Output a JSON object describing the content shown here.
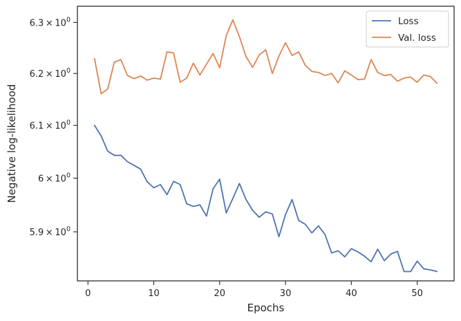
{
  "chart_data": {
    "type": "line",
    "title": "",
    "xlabel": "Epochs",
    "ylabel": "Negative log-likelihood",
    "y_scale": "log",
    "xlim": [
      -1.6,
      55.6
    ],
    "ylim": [
      5.81,
      6.332
    ],
    "grid": false,
    "legend_position": "top-right",
    "x_ticks": [
      0,
      10,
      20,
      30,
      40,
      50
    ],
    "x_tick_labels": [
      "0",
      "10",
      "20",
      "30",
      "40",
      "50"
    ],
    "y_ticks": [
      5.9,
      6.0,
      6.1,
      6.2,
      6.3
    ],
    "y_tick_labels": [
      {
        "mantissa": "5.9",
        "times": "×",
        "base": "10",
        "exp": "0"
      },
      {
        "mantissa": "6",
        "times": "×",
        "base": "10",
        "exp": "0"
      },
      {
        "mantissa": "6.1",
        "times": "×",
        "base": "10",
        "exp": "0"
      },
      {
        "mantissa": "6.2",
        "times": "×",
        "base": "10",
        "exp": "0"
      },
      {
        "mantissa": "6.3",
        "times": "×",
        "base": "10",
        "exp": "0"
      }
    ],
    "x": [
      1,
      2,
      3,
      4,
      5,
      6,
      7,
      8,
      9,
      10,
      11,
      12,
      13,
      14,
      15,
      16,
      17,
      18,
      19,
      20,
      21,
      22,
      23,
      24,
      25,
      26,
      27,
      28,
      29,
      30,
      31,
      32,
      33,
      34,
      35,
      36,
      37,
      38,
      39,
      40,
      41,
      42,
      43,
      44,
      45,
      46,
      47,
      48,
      49,
      50,
      51,
      52,
      53
    ],
    "series": [
      {
        "name": "Loss",
        "color": "#4c72b0",
        "values": [
          6.1,
          6.08,
          6.051,
          6.043,
          6.043,
          6.031,
          6.024,
          6.017,
          5.993,
          5.982,
          5.988,
          5.969,
          5.994,
          5.988,
          5.952,
          5.947,
          5.95,
          5.929,
          5.98,
          5.998,
          5.935,
          5.962,
          5.99,
          5.96,
          5.94,
          5.927,
          5.937,
          5.933,
          5.891,
          5.932,
          5.96,
          5.921,
          5.914,
          5.898,
          5.911,
          5.895,
          5.861,
          5.865,
          5.854,
          5.869,
          5.863,
          5.855,
          5.845,
          5.868,
          5.847,
          5.859,
          5.864,
          5.827,
          5.827,
          5.846,
          5.832,
          5.83,
          5.827
        ]
      },
      {
        "name": "Val. loss",
        "color": "#dd8452",
        "values": [
          6.229,
          6.161,
          6.17,
          6.222,
          6.227,
          6.196,
          6.19,
          6.195,
          6.187,
          6.191,
          6.189,
          6.242,
          6.24,
          6.183,
          6.191,
          6.22,
          6.197,
          6.218,
          6.239,
          6.211,
          6.274,
          6.305,
          6.272,
          6.233,
          6.212,
          6.236,
          6.246,
          6.2,
          6.234,
          6.26,
          6.235,
          6.242,
          6.216,
          6.204,
          6.202,
          6.196,
          6.2,
          6.182,
          6.205,
          6.197,
          6.188,
          6.189,
          6.227,
          6.202,
          6.196,
          6.198,
          6.185,
          6.191,
          6.193,
          6.183,
          6.197,
          6.194,
          6.181
        ]
      }
    ]
  }
}
